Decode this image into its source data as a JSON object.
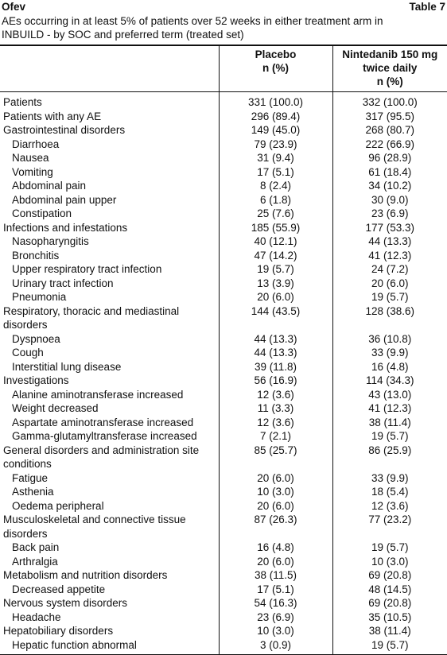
{
  "header": {
    "brand": "Ofev",
    "table_number": "Table 7",
    "caption": "AEs occurring in at least 5% of patients over 52 weeks in either treatment arm in INBUILD - by SOC and preferred term (treated set)"
  },
  "table": {
    "columns": [
      {
        "name": "Placebo",
        "unit": "n (%)"
      },
      {
        "name": "Nintedanib 150 mg twice daily",
        "unit": "n (%)"
      }
    ],
    "rows": [
      {
        "label": "Patients",
        "placebo": "331 (100.0)",
        "nintedanib": "332 (100.0)"
      },
      {
        "label": "Patients with any AE",
        "placebo": "296 (89.4)",
        "nintedanib": "317 (95.5)"
      },
      {
        "label": "Gastrointestinal disorders",
        "placebo": "149 (45.0)",
        "nintedanib": "268 (80.7)",
        "terms": [
          {
            "label": "Diarrhoea",
            "placebo": "79 (23.9)",
            "nintedanib": "222 (66.9)"
          },
          {
            "label": "Nausea",
            "placebo": "31 (9.4)",
            "nintedanib": "96 (28.9)"
          },
          {
            "label": "Vomiting",
            "placebo": "17 (5.1)",
            "nintedanib": "61 (18.4)"
          },
          {
            "label": "Abdominal pain",
            "placebo": "8 (2.4)",
            "nintedanib": "34 (10.2)"
          },
          {
            "label": "Abdominal pain upper",
            "placebo": "6 (1.8)",
            "nintedanib": "30 (9.0)"
          },
          {
            "label": "Constipation",
            "placebo": "25 (7.6)",
            "nintedanib": "23 (6.9)"
          }
        ]
      },
      {
        "label": "Infections and infestations",
        "placebo": "185 (55.9)",
        "nintedanib": "177 (53.3)",
        "terms": [
          {
            "label": "Nasopharyngitis",
            "placebo": "40 (12.1)",
            "nintedanib": "44 (13.3)"
          },
          {
            "label": "Bronchitis",
            "placebo": "47 (14.2)",
            "nintedanib": "41 (12.3)"
          },
          {
            "label": "Upper respiratory tract infection",
            "placebo": "19 (5.7)",
            "nintedanib": "24 (7.2)"
          },
          {
            "label": "Urinary tract infection",
            "placebo": "13 (3.9)",
            "nintedanib": "20 (6.0)"
          },
          {
            "label": "Pneumonia",
            "placebo": "20 (6.0)",
            "nintedanib": "19 (5.7)"
          }
        ]
      },
      {
        "label": "Respiratory, thoracic and mediastinal disorders",
        "placebo": "144 (43.5)",
        "nintedanib": "128 (38.6)",
        "terms": [
          {
            "label": "Dyspnoea",
            "placebo": "44 (13.3)",
            "nintedanib": "36 (10.8)"
          },
          {
            "label": "Cough",
            "placebo": "44 (13.3)",
            "nintedanib": "33 (9.9)"
          },
          {
            "label": "Interstitial lung disease",
            "placebo": "39 (11.8)",
            "nintedanib": "16 (4.8)"
          }
        ]
      },
      {
        "label": "Investigations",
        "placebo": "56 (16.9)",
        "nintedanib": "114 (34.3)",
        "terms": [
          {
            "label": "Alanine aminotransferase increased",
            "placebo": "12 (3.6)",
            "nintedanib": "43 (13.0)"
          },
          {
            "label": "Weight decreased",
            "placebo": "11 (3.3)",
            "nintedanib": "41 (12.3)"
          },
          {
            "label": "Aspartate aminotransferase increased",
            "placebo": "12 (3.6)",
            "nintedanib": "38 (11.4)"
          },
          {
            "label": "Gamma-glutamyltransferase increased",
            "placebo": "7 (2.1)",
            "nintedanib": "19 (5.7)"
          }
        ]
      },
      {
        "label": "General disorders and administration site conditions",
        "placebo": "85 (25.7)",
        "nintedanib": "86 (25.9)",
        "terms": [
          {
            "label": "Fatigue",
            "placebo": "20 (6.0)",
            "nintedanib": "33 (9.9)"
          },
          {
            "label": "Asthenia",
            "placebo": "10 (3.0)",
            "nintedanib": "18 (5.4)"
          },
          {
            "label": "Oedema peripheral",
            "placebo": "20 (6.0)",
            "nintedanib": "12 (3.6)"
          }
        ]
      },
      {
        "label": "Musculoskeletal and connective tissue disorders",
        "placebo": "87 (26.3)",
        "nintedanib": "77 (23.2)",
        "terms": [
          {
            "label": "Back pain",
            "placebo": "16 (4.8)",
            "nintedanib": "19 (5.7)"
          },
          {
            "label": "Arthralgia",
            "placebo": "20 (6.0)",
            "nintedanib": "10 (3.0)"
          }
        ]
      },
      {
        "label": "Metabolism and nutrition disorders",
        "placebo": "38 (11.5)",
        "nintedanib": "69 (20.8)",
        "terms": [
          {
            "label": "Decreased appetite",
            "placebo": "17 (5.1)",
            "nintedanib": "48 (14.5)"
          }
        ]
      },
      {
        "label": "Nervous system disorders",
        "placebo": "54 (16.3)",
        "nintedanib": "69 (20.8)",
        "terms": [
          {
            "label": "Headache",
            "placebo": "23 (6.9)",
            "nintedanib": "35 (10.5)"
          }
        ]
      },
      {
        "label": "Hepatobiliary disorders",
        "placebo": "10 (3.0)",
        "nintedanib": "38 (11.4)",
        "terms": [
          {
            "label": "Hepatic function abnormal",
            "placebo": "3 (0.9)",
            "nintedanib": "19 (5.7)"
          }
        ]
      }
    ]
  }
}
